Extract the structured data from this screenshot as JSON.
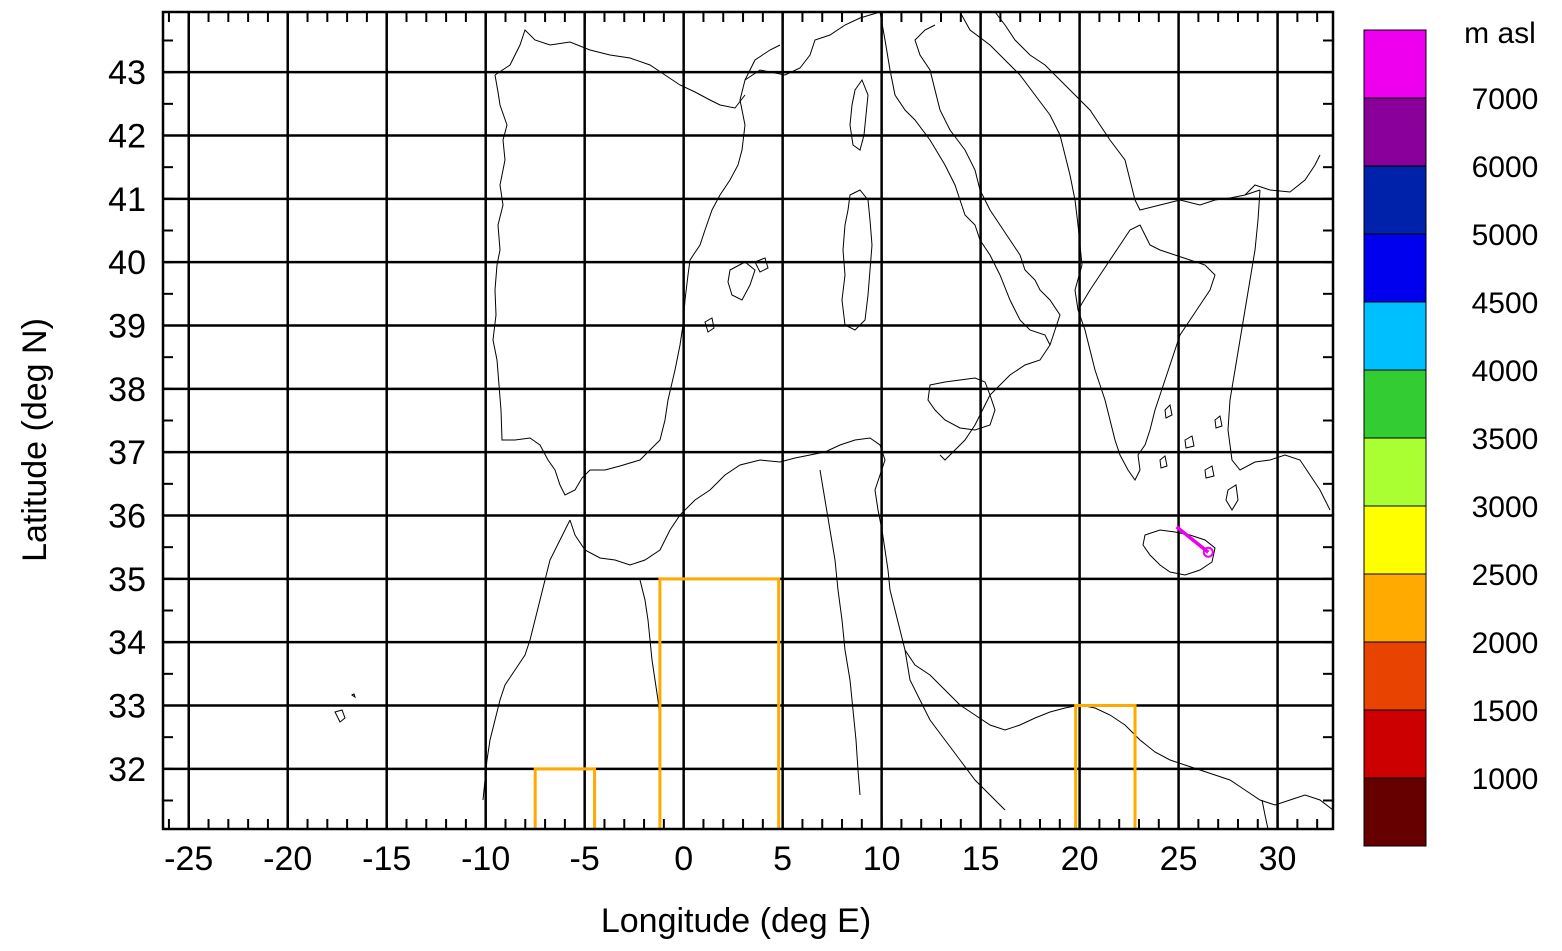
{
  "map": {
    "x_axis_title": "Longitude (deg E)",
    "y_axis_title": "Latitude (deg N)",
    "lon_range": [
      -26.3,
      32.8
    ],
    "lat_range": [
      31.05,
      43.95
    ],
    "lon_ticks": [
      -25,
      -20,
      -15,
      -10,
      -5,
      0,
      5,
      10,
      15,
      20,
      25,
      30
    ],
    "lon_tick_labels": [
      "-25",
      "-20",
      "-15",
      "-10",
      "-5",
      "0",
      "5",
      "10",
      "15",
      "20",
      "25",
      "30"
    ],
    "lat_ticks": [
      32,
      33,
      34,
      35,
      36,
      37,
      38,
      39,
      40,
      41,
      42,
      43
    ],
    "lat_tick_labels": [
      "32",
      "33",
      "34",
      "35",
      "36",
      "37",
      "38",
      "39",
      "40",
      "41",
      "42",
      "43"
    ],
    "grid": true,
    "colorbar": {
      "title": "m asl",
      "labels": [
        "7000",
        "6000",
        "5000",
        "4500",
        "4000",
        "3500",
        "3000",
        "2500",
        "2000",
        "1500",
        "1000"
      ],
      "colors_top_to_bottom": [
        "#ee00ee",
        "#880099",
        "#0022aa",
        "#0000ee",
        "#00bfff",
        "#33cc33",
        "#aaff33",
        "#ffff00",
        "#ffaa00",
        "#e84400",
        "#cc0000",
        "#660000"
      ]
    },
    "regions": [
      {
        "lon_min": -7.5,
        "lon_max": -4.5,
        "lat_min": 31.05,
        "lat_max": 32,
        "color": "#ffaa00"
      },
      {
        "lon_min": -1.2,
        "lon_max": 4.8,
        "lat_min": 31.05,
        "lat_max": 35,
        "color": "#ffaa00"
      },
      {
        "lon_min": 19.8,
        "lon_max": 22.8,
        "lat_min": 31.05,
        "lat_max": 33,
        "color": "#ffaa00"
      }
    ],
    "trajectory": {
      "color": "#ee00ee",
      "points": [
        [
          24.9,
          35.82
        ],
        [
          26.5,
          35.42
        ]
      ]
    }
  }
}
